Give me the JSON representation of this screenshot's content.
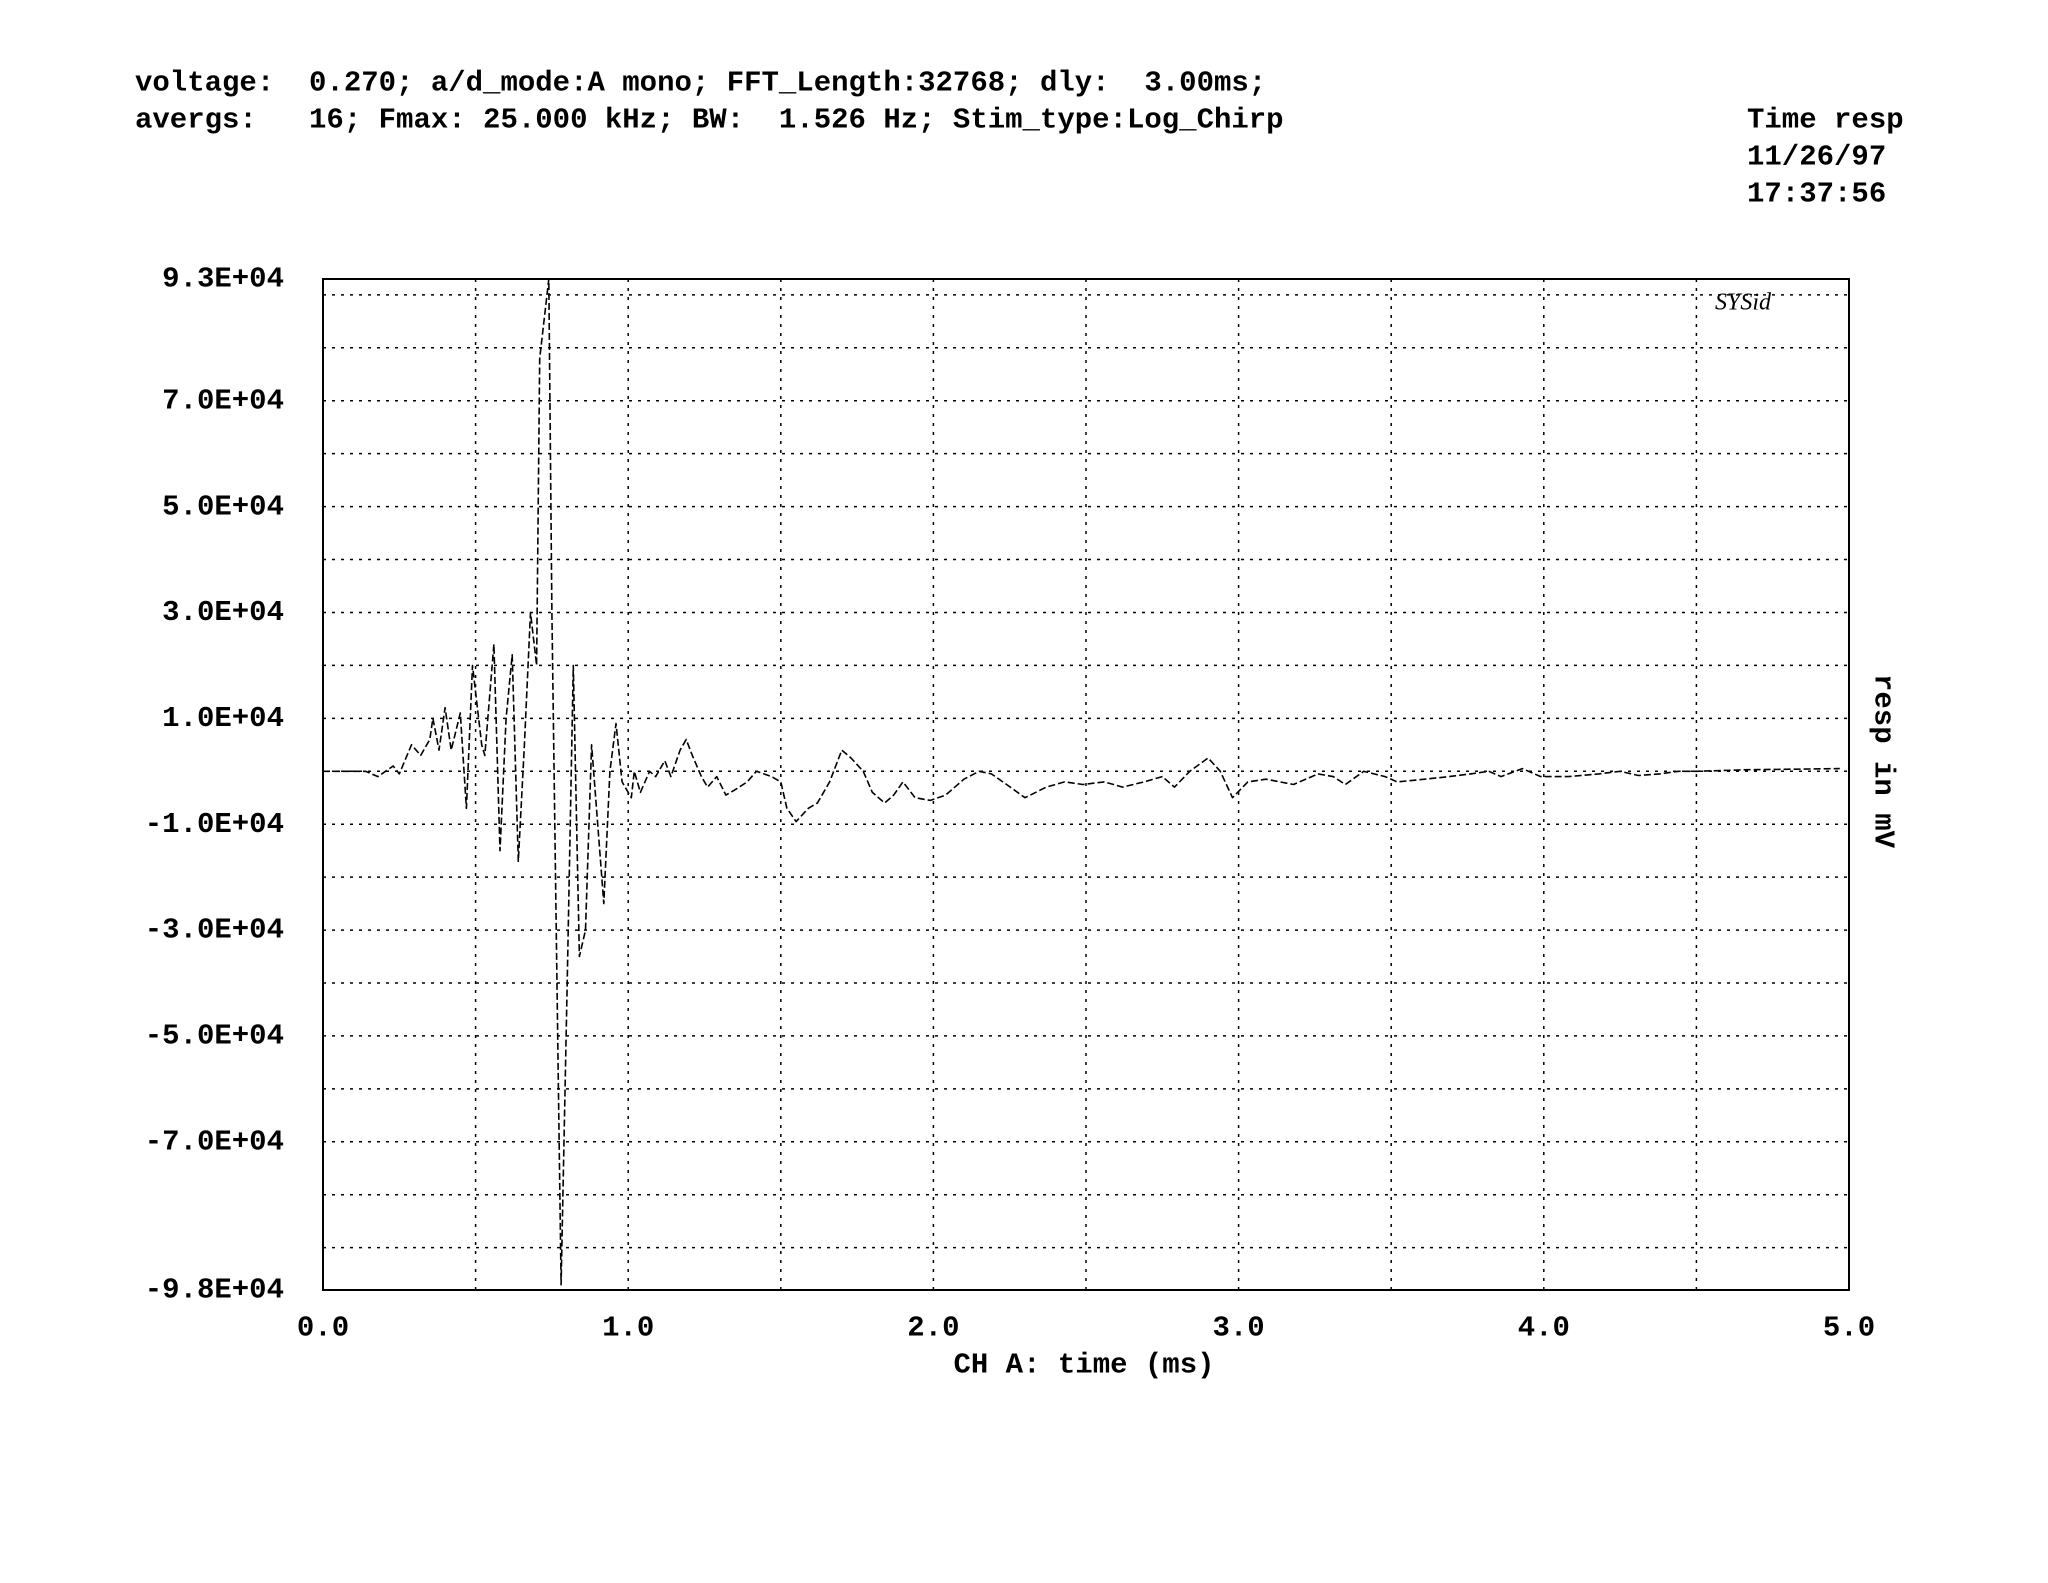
{
  "chart_data": {
    "type": "line",
    "header": [
      "voltage:  0.270; a/d_mode:A mono; FFT_Length:32768; dly:  3.00ms;",
      "avergs:   16; Fmax: 25.000 kHz; BW:  1.526 Hz; Stim_type:Log_Chirp"
    ],
    "stamp": [
      "Time resp",
      "11/26/97",
      "17:37:56"
    ],
    "logo": "SYSid",
    "xlabel": "CH A: time (ms)",
    "ylabel": "resp in mV",
    "color": "#000000",
    "x": [
      0.0,
      0.14,
      0.18,
      0.23,
      0.25,
      0.29,
      0.32,
      0.35,
      0.36,
      0.38,
      0.4,
      0.42,
      0.45,
      0.47,
      0.49,
      0.52,
      0.53,
      0.56,
      0.58,
      0.6,
      0.62,
      0.64,
      0.66,
      0.68,
      0.7,
      0.71,
      0.74,
      0.75,
      0.78,
      0.8,
      0.82,
      0.84,
      0.86,
      0.88,
      0.9,
      0.92,
      0.94,
      0.96,
      0.98,
      1.01,
      1.02,
      1.04,
      1.07,
      1.09,
      1.12,
      1.14,
      1.17,
      1.19,
      1.21,
      1.24,
      1.26,
      1.29,
      1.32,
      1.35,
      1.39,
      1.42,
      1.47,
      1.5,
      1.52,
      1.55,
      1.59,
      1.62,
      1.66,
      1.7,
      1.73,
      1.77,
      1.8,
      1.84,
      1.87,
      1.9,
      1.94,
      1.99,
      2.04,
      2.1,
      2.15,
      2.19,
      2.24,
      2.3,
      2.37,
      2.43,
      2.49,
      2.56,
      2.62,
      2.69,
      2.75,
      2.79,
      2.84,
      2.9,
      2.94,
      2.98,
      3.03,
      3.09,
      3.18,
      3.26,
      3.31,
      3.35,
      3.41,
      3.48,
      3.52,
      3.61,
      3.69,
      3.76,
      3.82,
      3.86,
      3.93,
      3.99,
      4.08,
      4.18,
      4.25,
      4.31,
      4.38,
      4.44,
      4.5,
      4.67,
      4.85,
      4.97
    ],
    "values": [
      0,
      0,
      -1000,
      1000,
      -500,
      5000,
      3000,
      6000,
      10000,
      4000,
      12000,
      4000,
      11000,
      -7000,
      20000,
      5000,
      3000,
      24000,
      -15000,
      10000,
      22000,
      -17000,
      5000,
      30000,
      20000,
      78000,
      93000,
      30000,
      -97000,
      -40000,
      20000,
      -35000,
      -30000,
      5000,
      -10000,
      -25000,
      0,
      9000,
      -2000,
      -5000,
      0,
      -4000,
      0,
      -1000,
      2000,
      -1000,
      4000,
      6000,
      3000,
      -1000,
      -3000,
      -1000,
      -4500,
      -3500,
      -2000,
      0,
      -1000,
      -2000,
      -7000,
      -9500,
      -7000,
      -6000,
      -2000,
      4000,
      2500,
      0,
      -4000,
      -6000,
      -4500,
      -2000,
      -5000,
      -5500,
      -4500,
      -1500,
      0,
      -500,
      -2500,
      -5000,
      -3000,
      -2000,
      -2500,
      -2000,
      -3000,
      -2000,
      -1000,
      -3000,
      0,
      2500,
      0,
      -5000,
      -2000,
      -1500,
      -2500,
      -500,
      -1000,
      -2500,
      0,
      -1000,
      -2000,
      -1500,
      -1000,
      -500,
      0,
      -1000,
      500,
      -1000,
      -1000,
      -500,
      0,
      -800,
      -500,
      0,
      0,
      300,
      400,
      500
    ],
    "xlim": [
      0,
      5
    ],
    "ylim": [
      -98000,
      93000
    ],
    "xticks": [
      {
        "value": 0,
        "label": "0.0"
      },
      {
        "value": 1,
        "label": "1.0"
      },
      {
        "value": 2,
        "label": "2.0"
      },
      {
        "value": 3,
        "label": "3.0"
      },
      {
        "value": 4,
        "label": "4.0"
      },
      {
        "value": 5,
        "label": "5.0"
      }
    ],
    "yticks": [
      {
        "value": 93000,
        "label": "9.3E+04"
      },
      {
        "value": 70000,
        "label": "7.0E+04"
      },
      {
        "value": 50000,
        "label": "5.0E+04"
      },
      {
        "value": 30000,
        "label": "3.0E+04"
      },
      {
        "value": 10000,
        "label": "1.0E+04"
      },
      {
        "value": -10000,
        "label": "-1.0E+04"
      },
      {
        "value": -30000,
        "label": "-3.0E+04"
      },
      {
        "value": -50000,
        "label": "-5.0E+04"
      },
      {
        "value": -70000,
        "label": "-7.0E+04"
      },
      {
        "value": -98000,
        "label": "-9.8E+04"
      }
    ],
    "x_grid": [
      0.5,
      1.5,
      2.5,
      3.5,
      4.5
    ],
    "y_grid": [
      90000,
      80000,
      60000,
      40000,
      20000,
      0,
      -20000,
      -40000,
      -60000,
      -80000,
      -90000
    ],
    "grid": true
  }
}
